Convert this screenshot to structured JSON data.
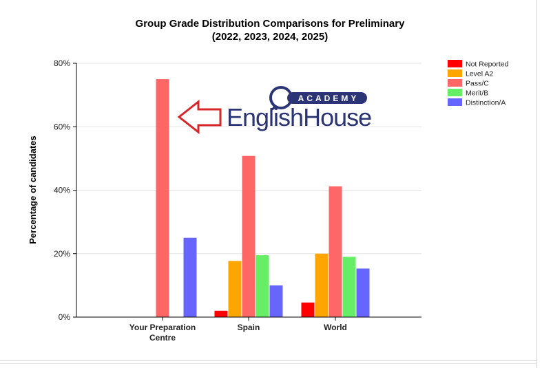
{
  "chart_data": {
    "type": "bar",
    "title": "Group Grade Distribution Comparisons for Preliminary",
    "subtitle": "(2022, 2023, 2024, 2025)",
    "ylabel": "Percentage of candidates",
    "xlabel": "",
    "ylim": [
      0,
      80
    ],
    "yticks": [
      0,
      20,
      40,
      60,
      80
    ],
    "ytick_labels": [
      "0%",
      "20%",
      "40%",
      "60%",
      "80%"
    ],
    "grid": true,
    "legend_position": "top-right",
    "categories": [
      "Your Preparation Centre",
      "Spain",
      "World"
    ],
    "category_lines": [
      [
        "Your Preparation",
        "Centre"
      ],
      [
        "Spain"
      ],
      [
        "World"
      ]
    ],
    "series": [
      {
        "name": "Not Reported",
        "color": "#ff0000",
        "values": [
          0,
          2,
          4.6
        ]
      },
      {
        "name": "Level A2",
        "color": "#ffa500",
        "values": [
          0,
          17.7,
          20
        ]
      },
      {
        "name": "Pass/C",
        "color": "#ff6666",
        "values": [
          75,
          50.8,
          41.2
        ]
      },
      {
        "name": "Merit/B",
        "color": "#66ee66",
        "values": [
          0,
          19.5,
          19
        ]
      },
      {
        "name": "Distinction/A",
        "color": "#6666ff",
        "values": [
          25,
          10,
          15.3
        ]
      }
    ]
  },
  "overlay": {
    "logo_top_text": "ACADEMY",
    "logo_main_text": "EnglishHouse",
    "logo_color": "#2b3475",
    "arrow_color": "#d7262a",
    "arrow_icon": "left-arrow-outline-icon"
  }
}
